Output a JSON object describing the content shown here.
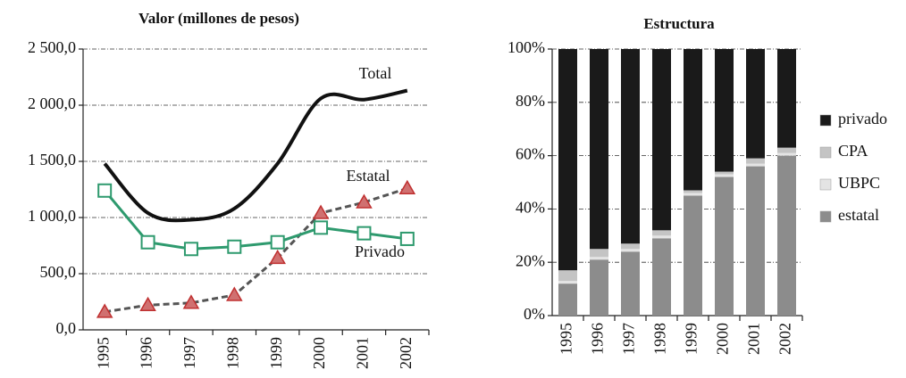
{
  "chart_data": [
    {
      "type": "line",
      "title": "Valor (millones de pesos)",
      "categories": [
        "1995",
        "1996",
        "1997",
        "1998",
        "1999",
        "2000",
        "2001",
        "2002"
      ],
      "series": [
        {
          "name": "Total",
          "color": "#111111",
          "smooth": true,
          "values": [
            1480,
            1040,
            980,
            1080,
            1480,
            2060,
            2050,
            2130
          ]
        },
        {
          "name": "Estatal",
          "color": "#555555",
          "dash": true,
          "marker": "triangle",
          "marker_color": "#d07070",
          "values": [
            160,
            220,
            240,
            310,
            640,
            1040,
            1135,
            1260
          ]
        },
        {
          "name": "Privado",
          "color": "#2e9a6e",
          "marker": "square",
          "marker_color": "#ffffff",
          "values": [
            1240,
            780,
            720,
            740,
            780,
            910,
            860,
            810
          ]
        }
      ],
      "ylim": [
        0,
        2500
      ],
      "yticks": [
        {
          "value": 0,
          "label": "0,0"
        },
        {
          "value": 500,
          "label": "500,0"
        },
        {
          "value": 1000,
          "label": "1 000,0"
        },
        {
          "value": 1500,
          "label": "1 500,0"
        },
        {
          "value": 2000,
          "label": "2 000,0"
        },
        {
          "value": 2500,
          "label": "2 500,0"
        }
      ],
      "grid": true
    },
    {
      "type": "stacked_bar",
      "title": "Estructura",
      "categories": [
        "1995",
        "1996",
        "1997",
        "1998",
        "1999",
        "2000",
        "2001",
        "2002"
      ],
      "series": [
        {
          "name": "estatal",
          "color": "#8c8c8c",
          "values": [
            12,
            21,
            24,
            29,
            45,
            52,
            56,
            60
          ]
        },
        {
          "name": "UBPC",
          "color": "#e4e4e4",
          "values": [
            1,
            1,
            1,
            1,
            1,
            1,
            1,
            1
          ]
        },
        {
          "name": "CPA",
          "color": "#c4c4c4",
          "values": [
            4,
            3,
            2,
            2,
            1,
            1,
            2,
            2
          ]
        },
        {
          "name": "privado",
          "color": "#1a1a1a",
          "values": [
            83,
            75,
            73,
            68,
            53,
            46,
            41,
            37
          ]
        }
      ],
      "ylim": [
        0,
        100
      ],
      "yticks": [
        {
          "value": 0,
          "label": "0%"
        },
        {
          "value": 20,
          "label": "20%"
        },
        {
          "value": 40,
          "label": "40%"
        },
        {
          "value": 60,
          "label": "60%"
        },
        {
          "value": 80,
          "label": "80%"
        },
        {
          "value": 100,
          "label": "100%"
        }
      ],
      "grid": true,
      "legend": "right"
    }
  ]
}
